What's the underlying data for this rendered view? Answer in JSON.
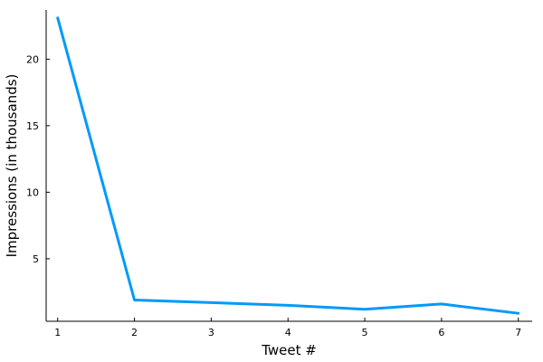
{
  "chart_data": {
    "type": "line",
    "title": "",
    "xlabel": "Tweet #",
    "ylabel": "Impressions (in thousands)",
    "x": [
      1,
      2,
      3,
      4,
      5,
      6,
      7
    ],
    "series": [
      {
        "values": [
          23.1,
          1.9,
          1.7,
          1.5,
          1.2,
          1.6,
          0.9
        ],
        "color": "#009AFA"
      }
    ],
    "xticks": [
      1,
      2,
      3,
      4,
      5,
      6,
      7
    ],
    "yticks": [
      5,
      10,
      15,
      20
    ],
    "xlim": [
      0.85,
      7.18
    ],
    "ylim": [
      0.3,
      23.7
    ],
    "grid": false,
    "legend": "none"
  }
}
